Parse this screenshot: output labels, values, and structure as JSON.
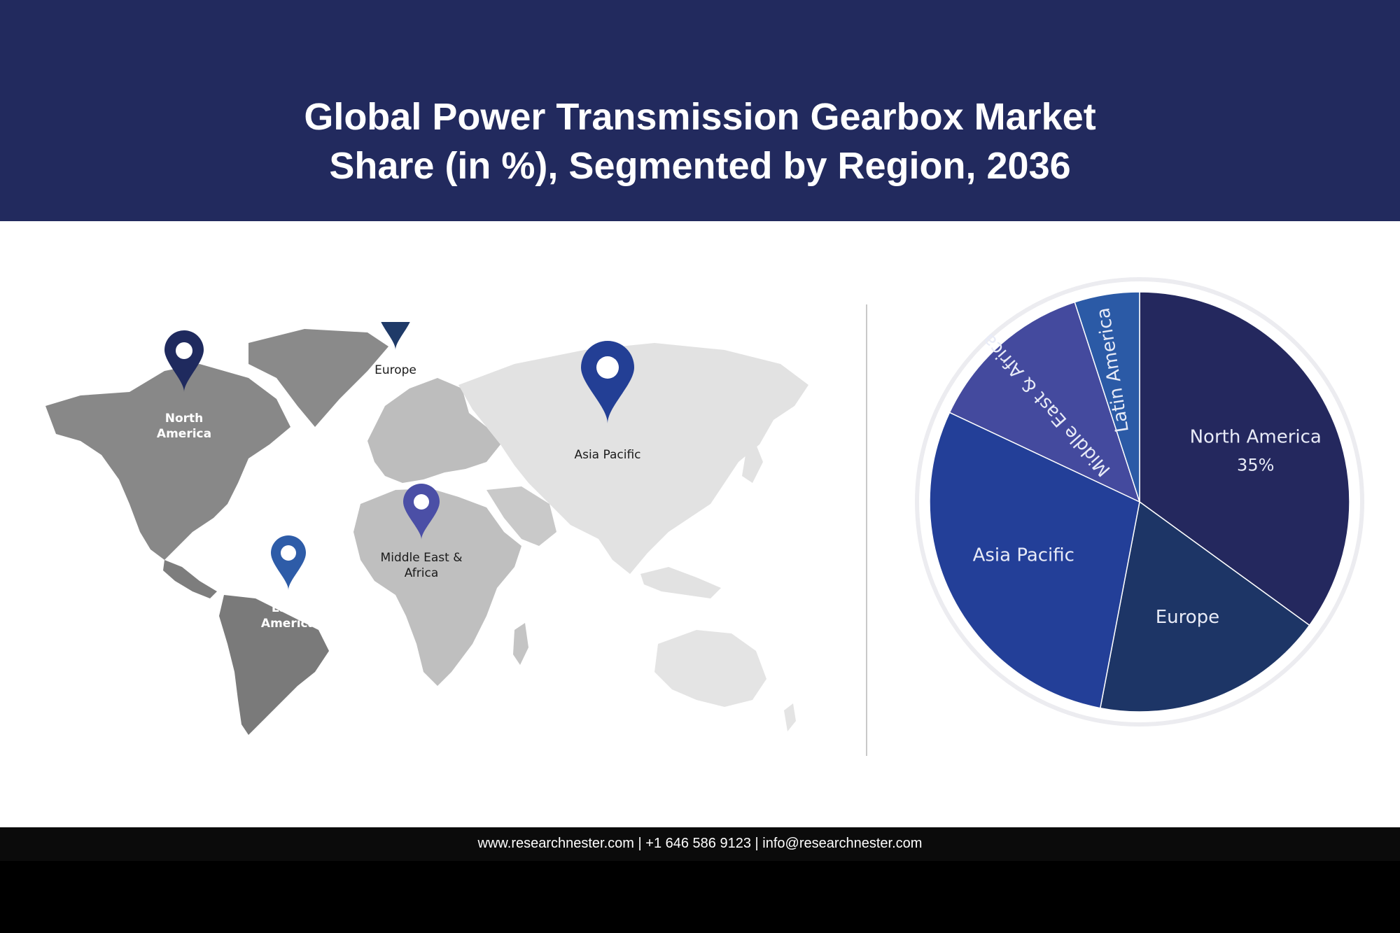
{
  "header": {
    "title_line1": "Global Power Transmission Gearbox Market",
    "title_line2": "Share (in %), Segmented by Region, 2036"
  },
  "map": {
    "pins": [
      {
        "id": "north-america",
        "line1": "North",
        "line2": "America",
        "color": "#1f2a5e"
      },
      {
        "id": "europe",
        "line1": "Europe",
        "line2": "",
        "color": "#1f3a68"
      },
      {
        "id": "asia-pacific",
        "line1": "Asia Pacific",
        "line2": "",
        "color": "#233f95"
      },
      {
        "id": "middle-east-africa",
        "line1": "Middle East &",
        "line2": "Africa",
        "color": "#4b4fa6"
      },
      {
        "id": "latin-america",
        "line1": "Latin",
        "line2": "America",
        "color": "#2e5ca8"
      }
    ]
  },
  "chart_data": {
    "type": "pie",
    "title": "Global Power Transmission Gearbox Market Share (in %), Segmented by Region, 2036",
    "slices": [
      {
        "label": "North America",
        "value": 35,
        "value_label": "35%",
        "color": "#24285e"
      },
      {
        "label": "Europe",
        "value": 18,
        "value_label": "",
        "color": "#1d3566"
      },
      {
        "label": "Asia Pacific",
        "value": 29,
        "value_label": "",
        "color": "#233f98"
      },
      {
        "label": "Middle East & Africa",
        "value": 13,
        "value_label": "",
        "color": "#444a9e"
      },
      {
        "label": "Latin America",
        "value": 5,
        "value_label": "",
        "color": "#2b5aa6"
      }
    ]
  },
  "footer": {
    "contact": "www.researchnester.com  | +1 646 586 9123 | info@researchnester.com"
  }
}
